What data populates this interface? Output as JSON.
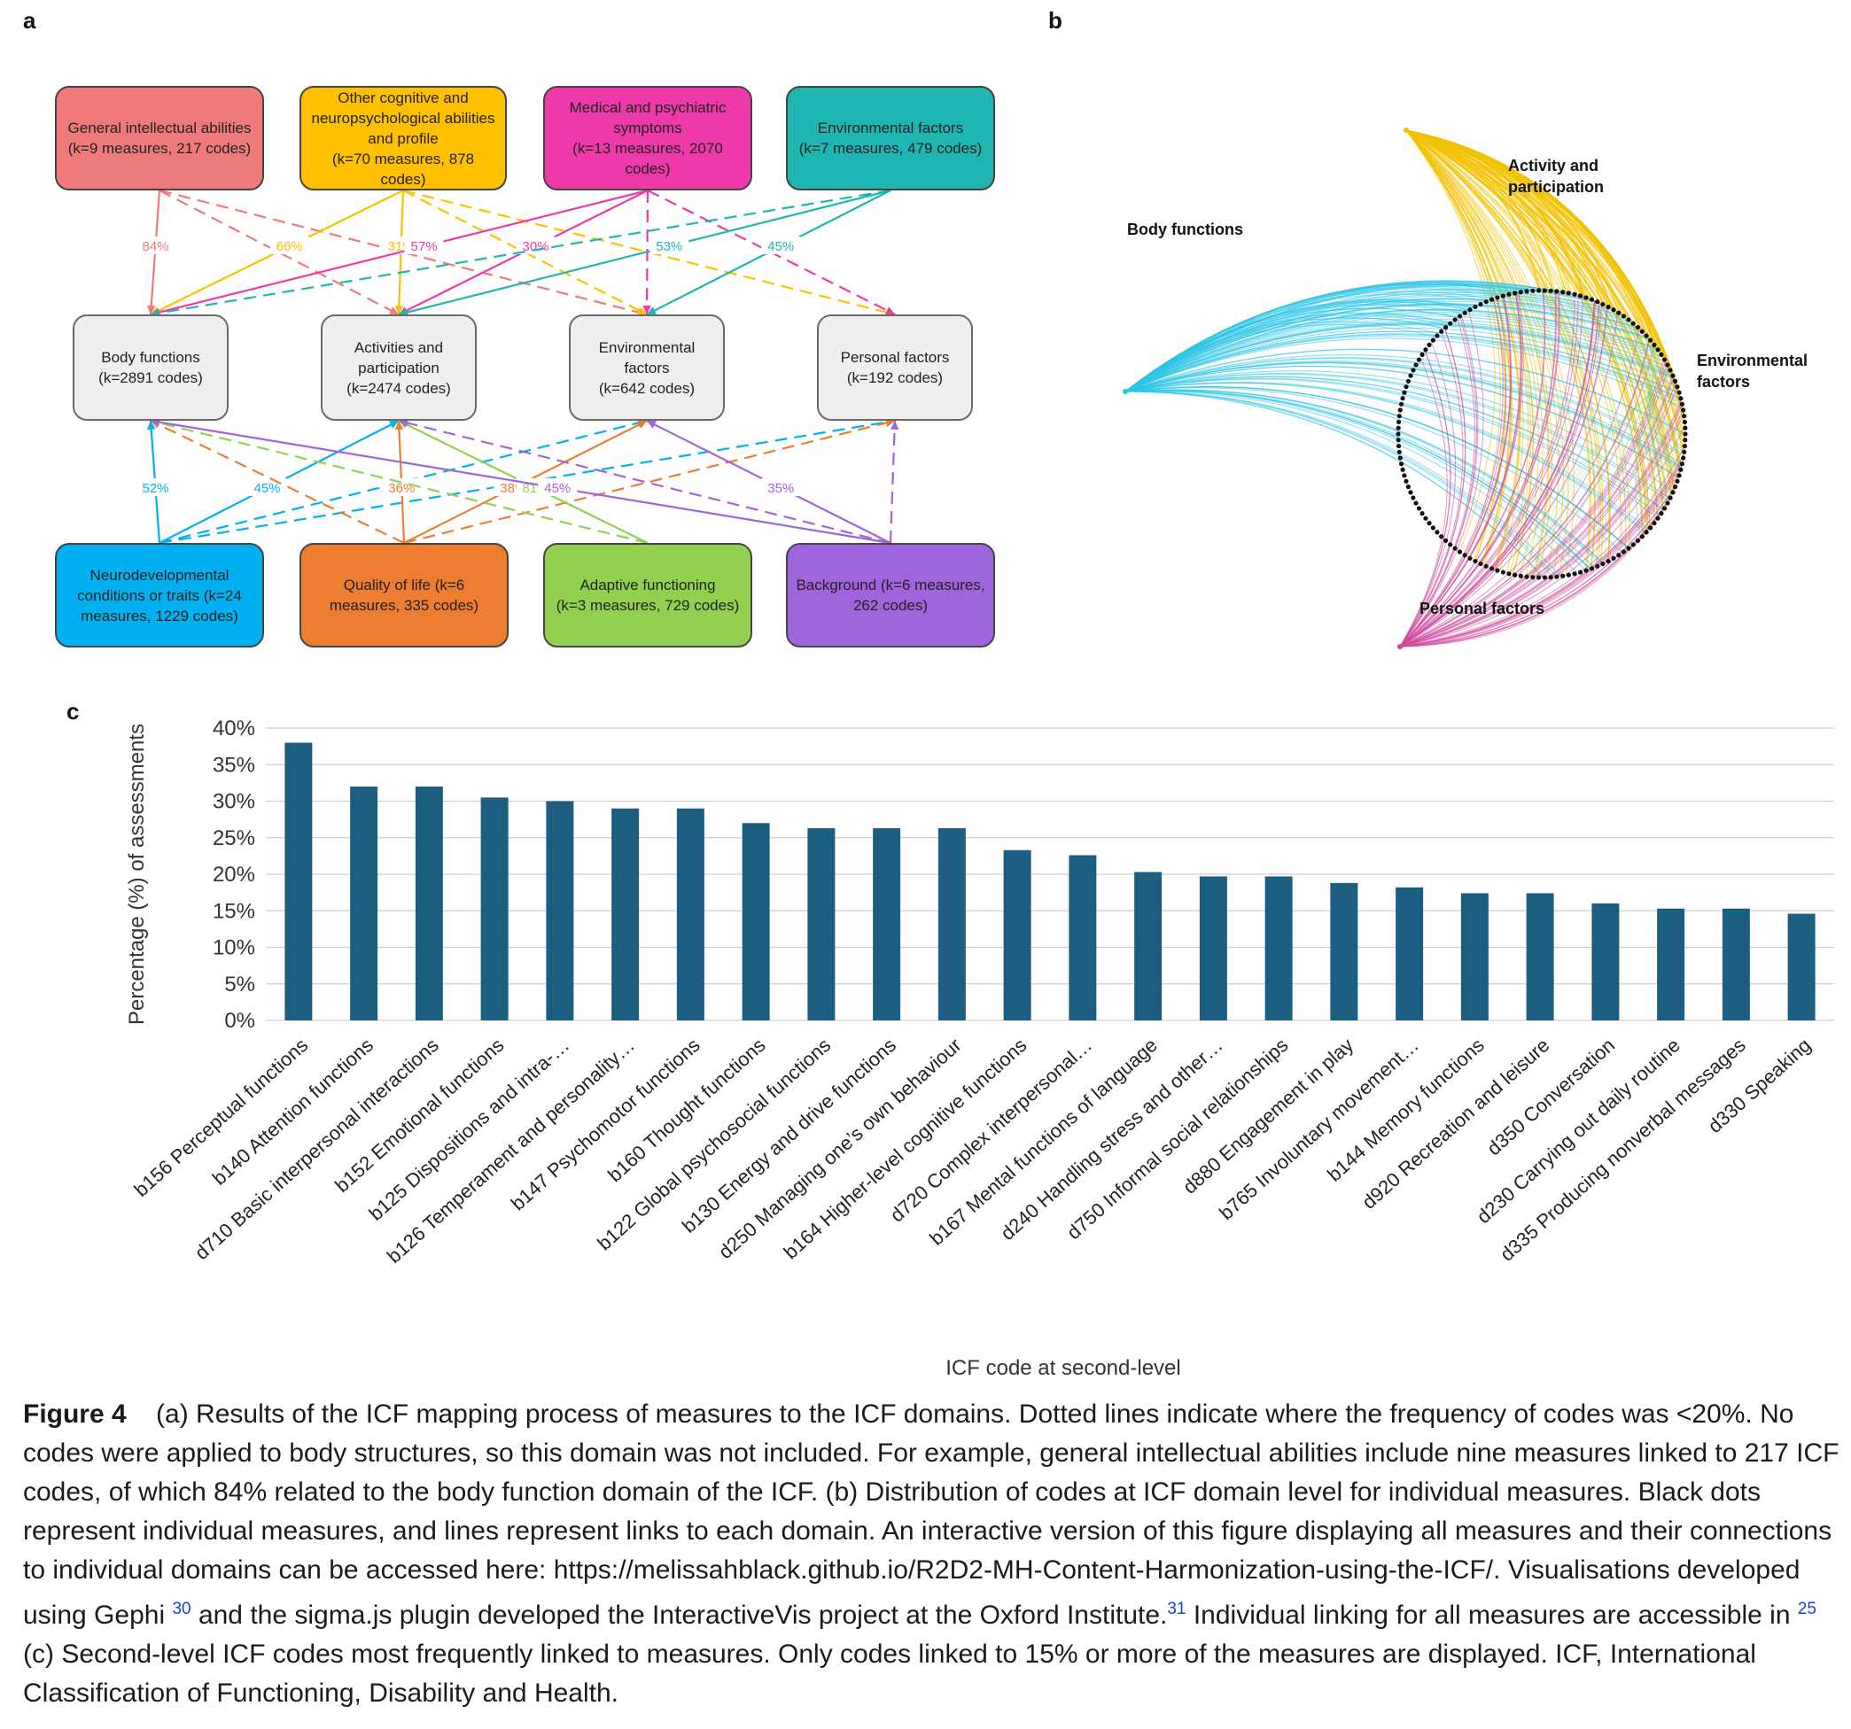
{
  "panel_labels": {
    "a": "a",
    "b": "b",
    "c": "c"
  },
  "panel_a": {
    "measure_groups": [
      {
        "id": "gia",
        "label": "General intellectual abilities\n(k=9 measures, 217 codes)",
        "color": "#ef7a7a"
      },
      {
        "id": "ocn",
        "label": "Other cognitive and\nneuropsychological abilities\nand profile\n(k=70 measures, 878 codes)",
        "color": "#ffc000"
      },
      {
        "id": "mps",
        "label": "Medical and psychiatric\nsymptoms\n(k=13 measures, 2070\ncodes)",
        "color": "#ee39a9"
      },
      {
        "id": "env",
        "label": "Environmental factors\n(k=7 measures, 479 codes)",
        "color": "#1fb5b0"
      },
      {
        "id": "ndc",
        "label": "Neurodevelopmental\nconditions or traits (k=24\nmeasures, 1229 codes)",
        "color": "#00b0f0"
      },
      {
        "id": "qol",
        "label": "Quality of life (k=6\nmeasures, 335 codes)",
        "color": "#ed7d31"
      },
      {
        "id": "adf",
        "label": "Adaptive functioning\n(k=3 measures, 729 codes)",
        "color": "#92d050"
      },
      {
        "id": "bkg",
        "label": "Background (k=6 measures,\n262 codes)",
        "color": "#a064dc"
      }
    ],
    "domains": [
      {
        "id": "bf",
        "label": "Body functions\n(k=2891 codes)"
      },
      {
        "id": "ap",
        "label": "Activities and\nparticipation\n(k=2474 codes)"
      },
      {
        "id": "ef",
        "label": "Environmental\nfactors\n(k=642 codes)"
      },
      {
        "id": "pf",
        "label": "Personal factors\n(k=192 codes)"
      }
    ],
    "links": [
      {
        "from": "gia",
        "to": "bf",
        "dashed": false,
        "pct": "84%"
      },
      {
        "from": "gia",
        "to": "ap",
        "dashed": true,
        "pct": ""
      },
      {
        "from": "gia",
        "to": "ef",
        "dashed": true,
        "pct": ""
      },
      {
        "from": "ocn",
        "to": "bf",
        "dashed": false,
        "pct": "66%"
      },
      {
        "from": "ocn",
        "to": "ap",
        "dashed": false,
        "pct": "31%"
      },
      {
        "from": "ocn",
        "to": "ef",
        "dashed": true,
        "pct": ""
      },
      {
        "from": "ocn",
        "to": "pf",
        "dashed": true,
        "pct": ""
      },
      {
        "from": "mps",
        "to": "bf",
        "dashed": false,
        "pct": "57%"
      },
      {
        "from": "mps",
        "to": "ap",
        "dashed": false,
        "pct": "30%"
      },
      {
        "from": "mps",
        "to": "ef",
        "dashed": true,
        "pct": ""
      },
      {
        "from": "mps",
        "to": "pf",
        "dashed": true,
        "pct": ""
      },
      {
        "from": "env",
        "to": "bf",
        "dashed": true,
        "pct": ""
      },
      {
        "from": "env",
        "to": "ap",
        "dashed": false,
        "pct": "53%"
      },
      {
        "from": "env",
        "to": "ef",
        "dashed": false,
        "pct": "45%"
      },
      {
        "from": "ndc",
        "to": "bf",
        "dashed": false,
        "pct": "52%"
      },
      {
        "from": "ndc",
        "to": "ap",
        "dashed": false,
        "pct": "45%"
      },
      {
        "from": "ndc",
        "to": "ef",
        "dashed": true,
        "pct": ""
      },
      {
        "from": "ndc",
        "to": "pf",
        "dashed": true,
        "pct": ""
      },
      {
        "from": "qol",
        "to": "bf",
        "dashed": true,
        "pct": ""
      },
      {
        "from": "qol",
        "to": "ap",
        "dashed": false,
        "pct": "36%"
      },
      {
        "from": "qol",
        "to": "ef",
        "dashed": false,
        "pct": "38%"
      },
      {
        "from": "qol",
        "to": "pf",
        "dashed": true,
        "pct": ""
      },
      {
        "from": "adf",
        "to": "bf",
        "dashed": true,
        "pct": ""
      },
      {
        "from": "adf",
        "to": "ap",
        "dashed": false,
        "pct": "81%"
      },
      {
        "from": "bkg",
        "to": "bf",
        "dashed": false,
        "pct": "45%"
      },
      {
        "from": "bkg",
        "to": "ap",
        "dashed": true,
        "pct": ""
      },
      {
        "from": "bkg",
        "to": "ef",
        "dashed": false,
        "pct": "35%"
      },
      {
        "from": "bkg",
        "to": "pf",
        "dashed": true,
        "pct": ""
      }
    ]
  },
  "panel_b": {
    "labels": {
      "activity": "Activity and\nparticipation",
      "body": "Body functions",
      "environmental": "Environmental\nfactors",
      "personal": "Personal factors"
    },
    "colors": {
      "activity": "#f2c200",
      "body": "#2ec4e6",
      "environmental": "#8fd07a",
      "personal": "#d04a9e",
      "measures": "#111111"
    }
  },
  "chart_data": {
    "type": "bar",
    "ylabel": "Percentage (%) of assessments",
    "xlabel": "ICF code at second-level",
    "ylim": [
      0,
      40
    ],
    "yticks": [
      "0%",
      "5%",
      "10%",
      "15%",
      "20%",
      "25%",
      "30%",
      "35%",
      "40%"
    ],
    "grid": true,
    "bar_color": "#1b5e80",
    "categories": [
      "b156 Perceptual functions",
      "b140 Attention functions",
      "d710 Basic interpersonal interactions",
      "b152 Emotional functions",
      "b125 Dispositions and intra-…",
      "b126 Temperament and personality…",
      "b147 Psychomotor functions",
      "b160 Thought functions",
      "b122 Global psychosocial functions",
      "b130 Energy and drive functions",
      "d250 Managing one’s own behaviour",
      "b164 Higher-level cognitive functions",
      "d720 Complex interpersonal…",
      "b167 Mental functions of language",
      "d240 Handling stress and other…",
      "d750 Informal social relationships",
      "d880 Engagement in play",
      "b765 Involuntary movement…",
      "b144 Memory functions",
      "d920 Recreation and leisure",
      "d350 Conversation",
      "d230 Carrying out daily routine",
      "d335 Producing nonverbal messages",
      "d330 Speaking"
    ],
    "values": [
      38,
      32,
      32,
      30.5,
      30,
      29,
      29,
      27,
      26.3,
      26.3,
      26.3,
      23.3,
      22.6,
      20.3,
      19.7,
      19.7,
      18.8,
      18.2,
      17.4,
      17.4,
      16,
      15.3,
      15.3,
      14.6
    ]
  },
  "caption": {
    "figure_label": "Figure 4",
    "text1": "(a) Results of the ICF mapping process of measures to the ICF domains. Dotted lines indicate where the frequency of codes was <20%. No codes were applied to body structures, so this domain was not included. For example, general intellectual abilities include nine measures linked to 217 ICF codes, of which 84% related to the body function domain of the ICF. (b) Distribution of codes at ICF domain level for individual measures. Black dots represent individual measures, and lines represent links to each domain. An interactive version of this figure displaying all measures and their connections to individual domains can be accessed here: https://melissahblack.github.io/R2D2-MH-Content-Harmonization-using-the-ICF/. Visualisations developed using Gephi",
    "ref1": "30",
    "text2": "and the sigma.js plugin developed the InteractiveVis project at the Oxford Institute.",
    "ref2": "31",
    "text3": "Individual linking for all measures are accessible in",
    "ref3": "25",
    "text4": "(c) Second-level ICF codes most frequently linked to measures. Only codes linked to 15% or more of the measures are displayed. ICF, International Classification of Functioning, Disability and Health."
  }
}
